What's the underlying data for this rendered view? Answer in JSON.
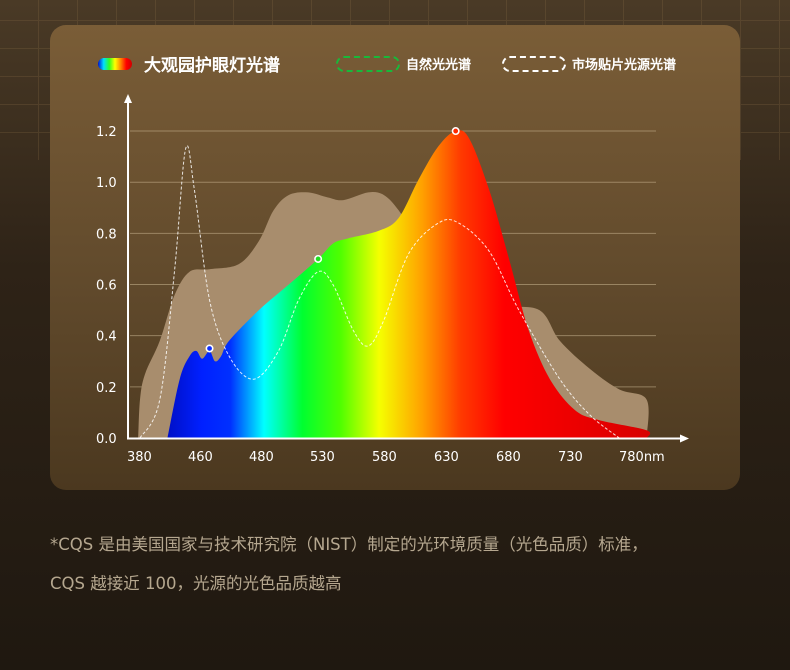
{
  "legend": {
    "main": "大观园护眼灯光谱",
    "natural": "自然光光谱",
    "market": "市场贴片光源光谱"
  },
  "footer": {
    "line1": "*CQS 是由美国国家与技术研究院（NIST）制定的光环境质量（光色品质）标准，",
    "line2": "CQS 越接近 100，光源的光色品质越高"
  },
  "chart_data": {
    "type": "area",
    "title": "",
    "xlabel": "nm",
    "ylabel": "",
    "x_ticks": [
      380,
      460,
      480,
      530,
      580,
      630,
      680,
      730,
      780
    ],
    "x_tick_labels": [
      "380",
      "460",
      "480",
      "530",
      "580",
      "630",
      "680",
      "730",
      "780nm"
    ],
    "y_ticks": [
      0.0,
      0.2,
      0.4,
      0.6,
      0.8,
      1.0,
      1.2
    ],
    "y_tick_labels": [
      "0.0",
      "0.2",
      "0.4",
      "0.6",
      "0.8",
      "1.0",
      "1.2"
    ],
    "ylim": [
      0,
      1.35
    ],
    "grid": true,
    "legend_position": "top",
    "colors": {
      "market_fill": "#a88d6d",
      "natural_stroke": "#ffffff",
      "natural_legend": "#19b83a",
      "grid": "#c9b48f",
      "axis": "#ffffff",
      "spectrum_gradient": [
        [
          "#0010c8",
          0.0
        ],
        [
          "#0020ff",
          0.07
        ],
        [
          "#0030ff",
          0.13
        ],
        [
          "#00ffff",
          0.2
        ],
        [
          "#00ff30",
          0.28
        ],
        [
          "#50ff00",
          0.36
        ],
        [
          "#f5ff00",
          0.44
        ],
        [
          "#ffa000",
          0.53
        ],
        [
          "#ff3a00",
          0.61
        ],
        [
          "#ff0000",
          0.7
        ],
        [
          "#d80000",
          1.0
        ]
      ]
    },
    "series": [
      {
        "name": "市场贴片光源光谱",
        "style": "area",
        "points": [
          [
            377.6,
            0
          ],
          [
            380,
            0.15
          ],
          [
            386.5,
            0.25
          ],
          [
            406,
            0.38
          ],
          [
            425.5,
            0.56
          ],
          [
            445,
            0.65
          ],
          [
            462.8,
            0.66
          ],
          [
            472.4,
            0.68
          ],
          [
            479,
            0.77
          ],
          [
            489.5,
            0.89
          ],
          [
            502,
            0.95
          ],
          [
            518,
            0.96
          ],
          [
            534,
            0.94
          ],
          [
            546.5,
            0.93
          ],
          [
            566.5,
            0.96
          ],
          [
            579,
            0.95
          ],
          [
            591,
            0.89
          ],
          [
            607,
            0.77
          ],
          [
            639.5,
            0.6
          ],
          [
            672,
            0.52
          ],
          [
            704.5,
            0.5
          ],
          [
            721,
            0.38
          ],
          [
            745.5,
            0.27
          ],
          [
            769.5,
            0.19
          ],
          [
            792,
            0.15
          ],
          [
            792,
            0
          ]
        ]
      },
      {
        "name": "大观园护眼灯光谱",
        "style": "gradient-area",
        "points": [
          [
            416,
            0
          ],
          [
            432,
            0.23
          ],
          [
            445,
            0.32
          ],
          [
            454,
            0.34
          ],
          [
            460.4,
            0.31
          ],
          [
            462.8,
            0.34
          ],
          [
            464.6,
            0.3
          ],
          [
            466.6,
            0.32
          ],
          [
            469.2,
            0.38
          ],
          [
            479,
            0.5
          ],
          [
            502,
            0.6
          ],
          [
            526,
            0.7
          ],
          [
            538,
            0.76
          ],
          [
            550,
            0.78
          ],
          [
            575,
            0.81
          ],
          [
            591,
            0.86
          ],
          [
            607,
            1.01
          ],
          [
            623,
            1.14
          ],
          [
            637,
            1.2
          ],
          [
            648,
            1.17
          ],
          [
            664,
            0.97
          ],
          [
            680,
            0.7
          ],
          [
            696,
            0.42
          ],
          [
            713,
            0.23
          ],
          [
            733,
            0.11
          ],
          [
            753,
            0.07
          ],
          [
            792,
            0.03
          ],
          [
            792,
            0
          ]
        ]
      },
      {
        "name": "自然光光谱",
        "style": "dashed-line",
        "points": [
          [
            380,
            0
          ],
          [
            406,
            0.15
          ],
          [
            425.5,
            0.66
          ],
          [
            439.8,
            1.13
          ],
          [
            451.4,
            0.97
          ],
          [
            462.8,
            0.54
          ],
          [
            469.2,
            0.32
          ],
          [
            477.3,
            0.23
          ],
          [
            493.5,
            0.34
          ],
          [
            510,
            0.54
          ],
          [
            526,
            0.65
          ],
          [
            538,
            0.6
          ],
          [
            554.5,
            0.42
          ],
          [
            566.5,
            0.36
          ],
          [
            579,
            0.46
          ],
          [
            599,
            0.72
          ],
          [
            623,
            0.84
          ],
          [
            639.5,
            0.84
          ],
          [
            664,
            0.73
          ],
          [
            688,
            0.5
          ],
          [
            721,
            0.23
          ],
          [
            745.5,
            0.09
          ],
          [
            769.5,
            0
          ]
        ]
      }
    ],
    "markers": [
      {
        "x": 462.8,
        "y": 0.35,
        "color": "#1030ff"
      },
      {
        "x": 526,
        "y": 0.7,
        "color": "#20e020"
      },
      {
        "x": 637,
        "y": 1.2,
        "color": "#ff2a00"
      }
    ]
  }
}
